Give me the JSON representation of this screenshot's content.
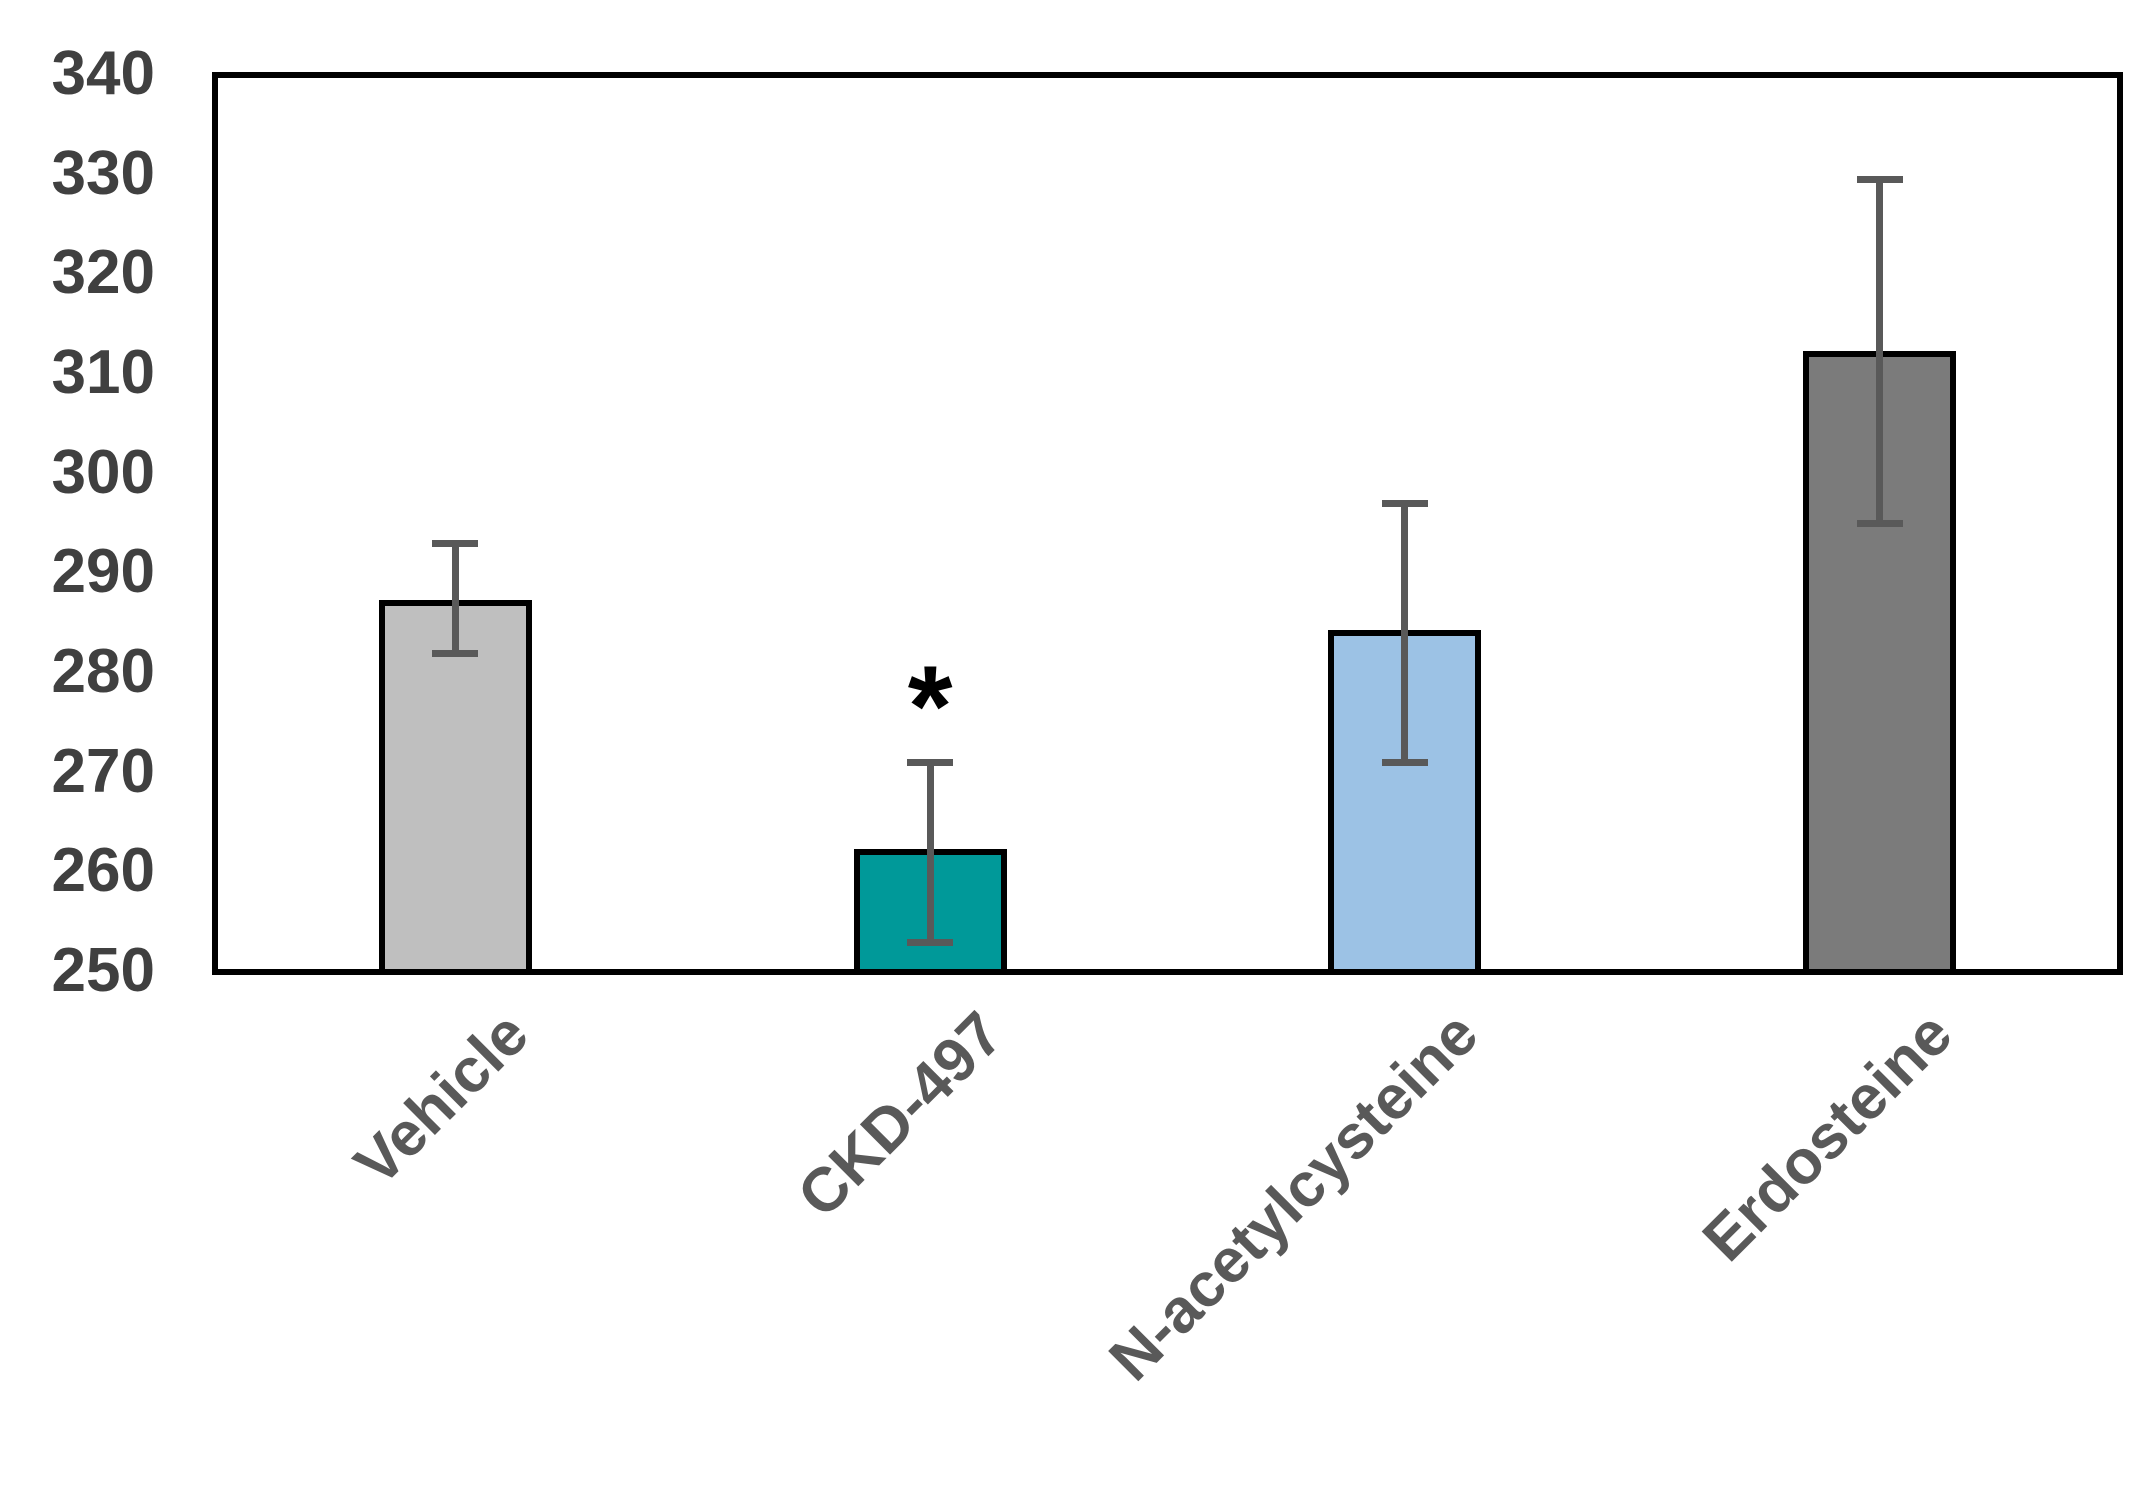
{
  "chart_data": {
    "type": "bar",
    "title": "",
    "xlabel": "",
    "ylabel": "",
    "categories": [
      "Vehicle",
      "CKD-497",
      "N-acetylcysteine",
      "Erdosteine"
    ],
    "values": [
      287,
      262,
      284,
      312
    ],
    "error_upper": [
      293,
      271,
      297,
      329.5
    ],
    "error_lower": [
      282,
      253,
      271,
      295
    ],
    "bar_colors": [
      "#BFBFBF",
      "#009999",
      "#9CC2E5",
      "#7B7B7B"
    ],
    "bar_border_color": "#000000",
    "error_bar_color": "#595959",
    "axis_frame_color": "#000000",
    "ytick_color": "#404040",
    "xtick_color": "#595959",
    "ylim": [
      250,
      340
    ],
    "ytick_step": 10,
    "yticks": [
      340,
      330,
      320,
      310,
      300,
      290,
      280,
      270,
      260,
      250
    ],
    "grid": false,
    "legend": false,
    "annotations": [
      {
        "category": "CKD-497",
        "text": "*",
        "y": 280,
        "color": "#000000"
      }
    ]
  }
}
